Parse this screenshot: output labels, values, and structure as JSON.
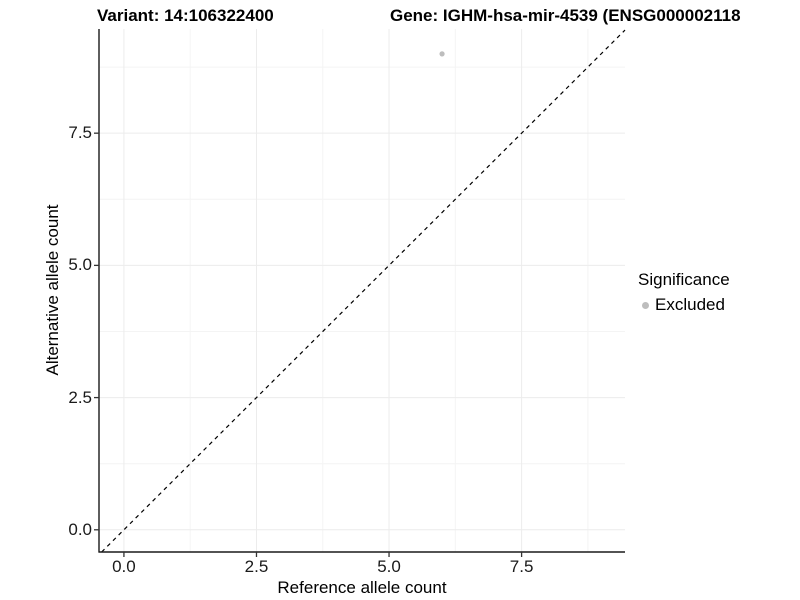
{
  "header": {
    "variant_title": "Variant: 14:106322400",
    "gene_title": "Gene: IGHM-hsa-mir-4539 (ENSG000002118"
  },
  "chart_data": {
    "type": "scatter",
    "xlabel": "Reference allele count",
    "ylabel": "Alternative allele count",
    "x_tick_labels": [
      "0.0",
      "2.5",
      "5.0",
      "7.5"
    ],
    "y_tick_labels": [
      "0.0",
      "2.5",
      "5.0",
      "7.5"
    ],
    "x_tick_values": [
      0,
      2.5,
      5,
      7.5
    ],
    "y_tick_values": [
      0,
      2.5,
      5,
      7.5
    ],
    "minor_tick_values": [
      1.25,
      3.75,
      6.25,
      8.75
    ],
    "xlim": [
      -0.47,
      9.45
    ],
    "ylim": [
      -0.42,
      9.47
    ],
    "points": [
      {
        "x": 6,
        "y": 9,
        "significance": "Excluded"
      }
    ],
    "reference_line": {
      "type": "identity",
      "slope": 1,
      "intercept": 0,
      "style": "dashed"
    },
    "grid": "major+minor",
    "legend_position": "right",
    "colors": {
      "point": "#bdbdbd",
      "grid_major": "#ececec",
      "grid_minor": "#f4f4f4",
      "axis": "#1a1a1a",
      "tick": "#333333",
      "dashed_line": "#000000"
    }
  },
  "legend": {
    "title": "Significance",
    "items": [
      {
        "label": "Excluded",
        "color": "#bdbdbd",
        "marker": "circle"
      }
    ]
  }
}
